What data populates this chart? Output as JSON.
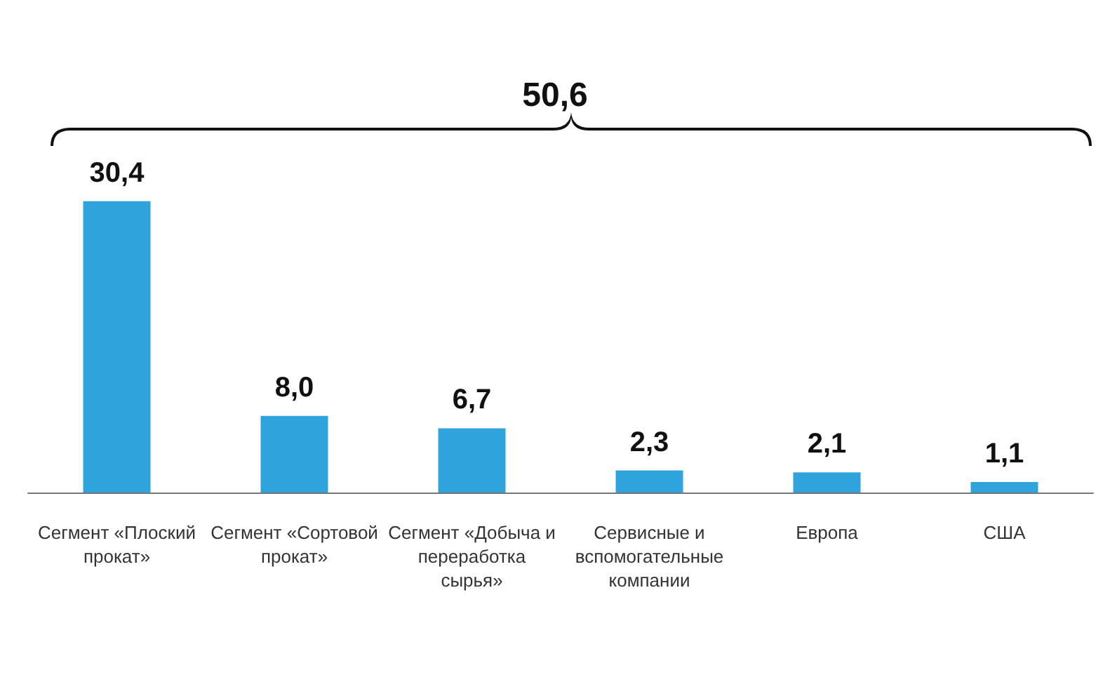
{
  "chart_data": {
    "type": "bar",
    "categories": [
      "Сегмент «Плоский прокат»",
      "Сегмент «Сортовой прокат»",
      "Сегмент «Добыча и переработка сырья»",
      "Сервисные и вспомогательные компании",
      "Европа",
      "США"
    ],
    "values": [
      30.4,
      8.0,
      6.7,
      2.3,
      2.1,
      1.1
    ],
    "value_labels": [
      "30,4",
      "8,0",
      "6,7",
      "2,3",
      "2,1",
      "1,1"
    ],
    "color": "#2fa3dc",
    "annotations": [
      "50,6"
    ],
    "grid": false
  }
}
